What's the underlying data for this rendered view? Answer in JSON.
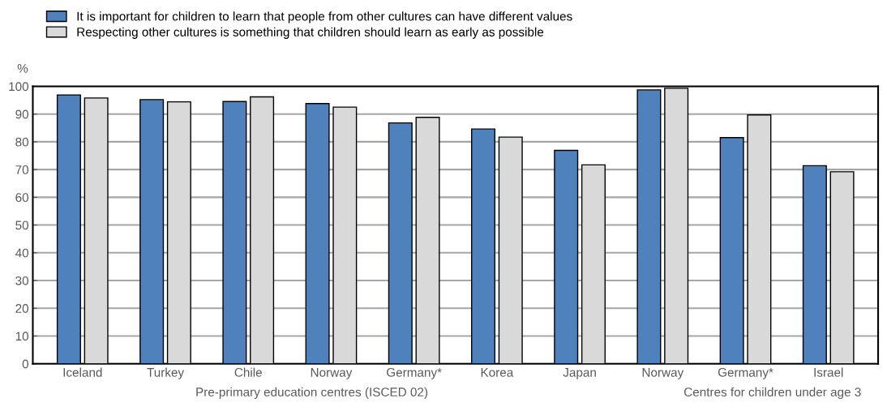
{
  "chart_data": {
    "type": "bar",
    "categories": [
      "Iceland",
      "Turkey",
      "Chile",
      "Norway",
      "Germany*",
      "Korea",
      "Japan",
      "Norway",
      "Germany*",
      "Israel"
    ],
    "series": [
      {
        "name": "It is important for children to learn that people from other cultures can have different values",
        "color": "#4f81bd",
        "values": [
          96.9,
          95.2,
          94.5,
          93.8,
          86.8,
          84.6,
          76.9,
          98.7,
          81.5,
          71.4
        ]
      },
      {
        "name": "Respecting other cultures is something that children should learn as early as possible",
        "color": "#d9d9d9",
        "values": [
          95.8,
          94.4,
          96.2,
          92.5,
          88.8,
          81.7,
          71.7,
          99.3,
          89.7,
          69.2
        ]
      }
    ],
    "ylabel": "%",
    "ylim": [
      0,
      100
    ],
    "yticks": [
      0,
      10,
      20,
      30,
      40,
      50,
      60,
      70,
      80,
      90,
      100
    ],
    "grid": "y",
    "legend": "top left",
    "annotations": [
      "Pre-primary education centres (ISCED 02)",
      "Centres for children under age 3"
    ]
  }
}
